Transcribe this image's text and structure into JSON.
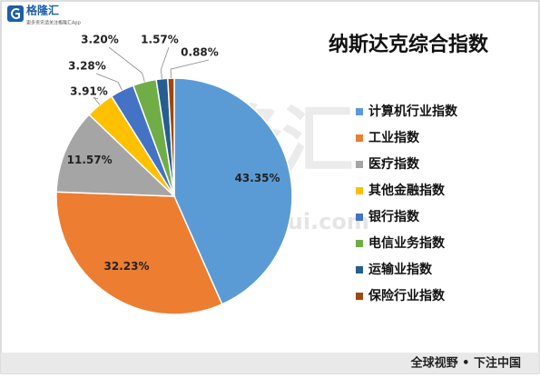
{
  "logo": {
    "name": "格隆汇",
    "tagline": "更多资讯请关注格隆汇App"
  },
  "watermark": {
    "name": "格隆汇",
    "url": "www.gelonghui.com"
  },
  "footer": "全球视野 • 下注中国",
  "chart_data": {
    "type": "pie",
    "title": "纳斯达克综合指数",
    "categories": [
      "计算机行业指数",
      "工业指数",
      "医疗指数",
      "其他金融指数",
      "银行指数",
      "电信业务指数",
      "运输业指数",
      "保险行业指数"
    ],
    "values": [
      43.35,
      32.23,
      11.57,
      3.91,
      3.28,
      3.2,
      1.57,
      0.88
    ],
    "value_labels": [
      "43.35%",
      "32.23%",
      "11.57%",
      "3.91%",
      "3.28%",
      "3.20%",
      "1.57%",
      "0.88%"
    ],
    "colors": [
      "#5b9bd5",
      "#ed7d31",
      "#a5a5a5",
      "#ffc000",
      "#4472c4",
      "#70ad47",
      "#255e91",
      "#9e480e"
    ],
    "legend": "right"
  }
}
